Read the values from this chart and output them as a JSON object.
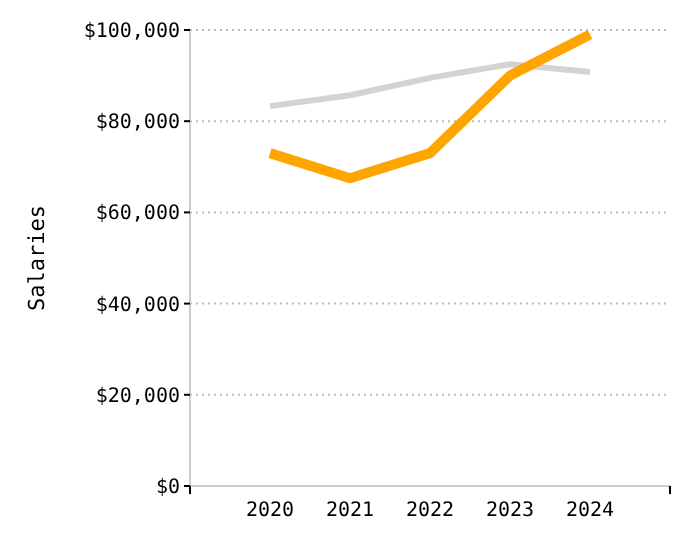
{
  "chart_data": {
    "type": "line",
    "ylabel": "Salaries",
    "categories": [
      "2020",
      "2021",
      "2022",
      "2023",
      "2024"
    ],
    "series": [
      {
        "color": "#d3d3d3",
        "values": [
          83300,
          85700,
          89500,
          92500,
          90800
        ]
      },
      {
        "color": "#ffa500",
        "values": [
          73000,
          67500,
          73000,
          90000,
          99000
        ]
      }
    ],
    "ylim": [
      0,
      100000
    ],
    "yticks": [
      {
        "value": 0,
        "label": "$0"
      },
      {
        "value": 20000,
        "label": "$20,000"
      },
      {
        "value": 40000,
        "label": "$40,000"
      },
      {
        "value": 60000,
        "label": "$60,000"
      },
      {
        "value": 80000,
        "label": "$80,000"
      },
      {
        "value": 100000,
        "label": "$100,000"
      }
    ],
    "grid": "y",
    "line_style": "solid"
  }
}
